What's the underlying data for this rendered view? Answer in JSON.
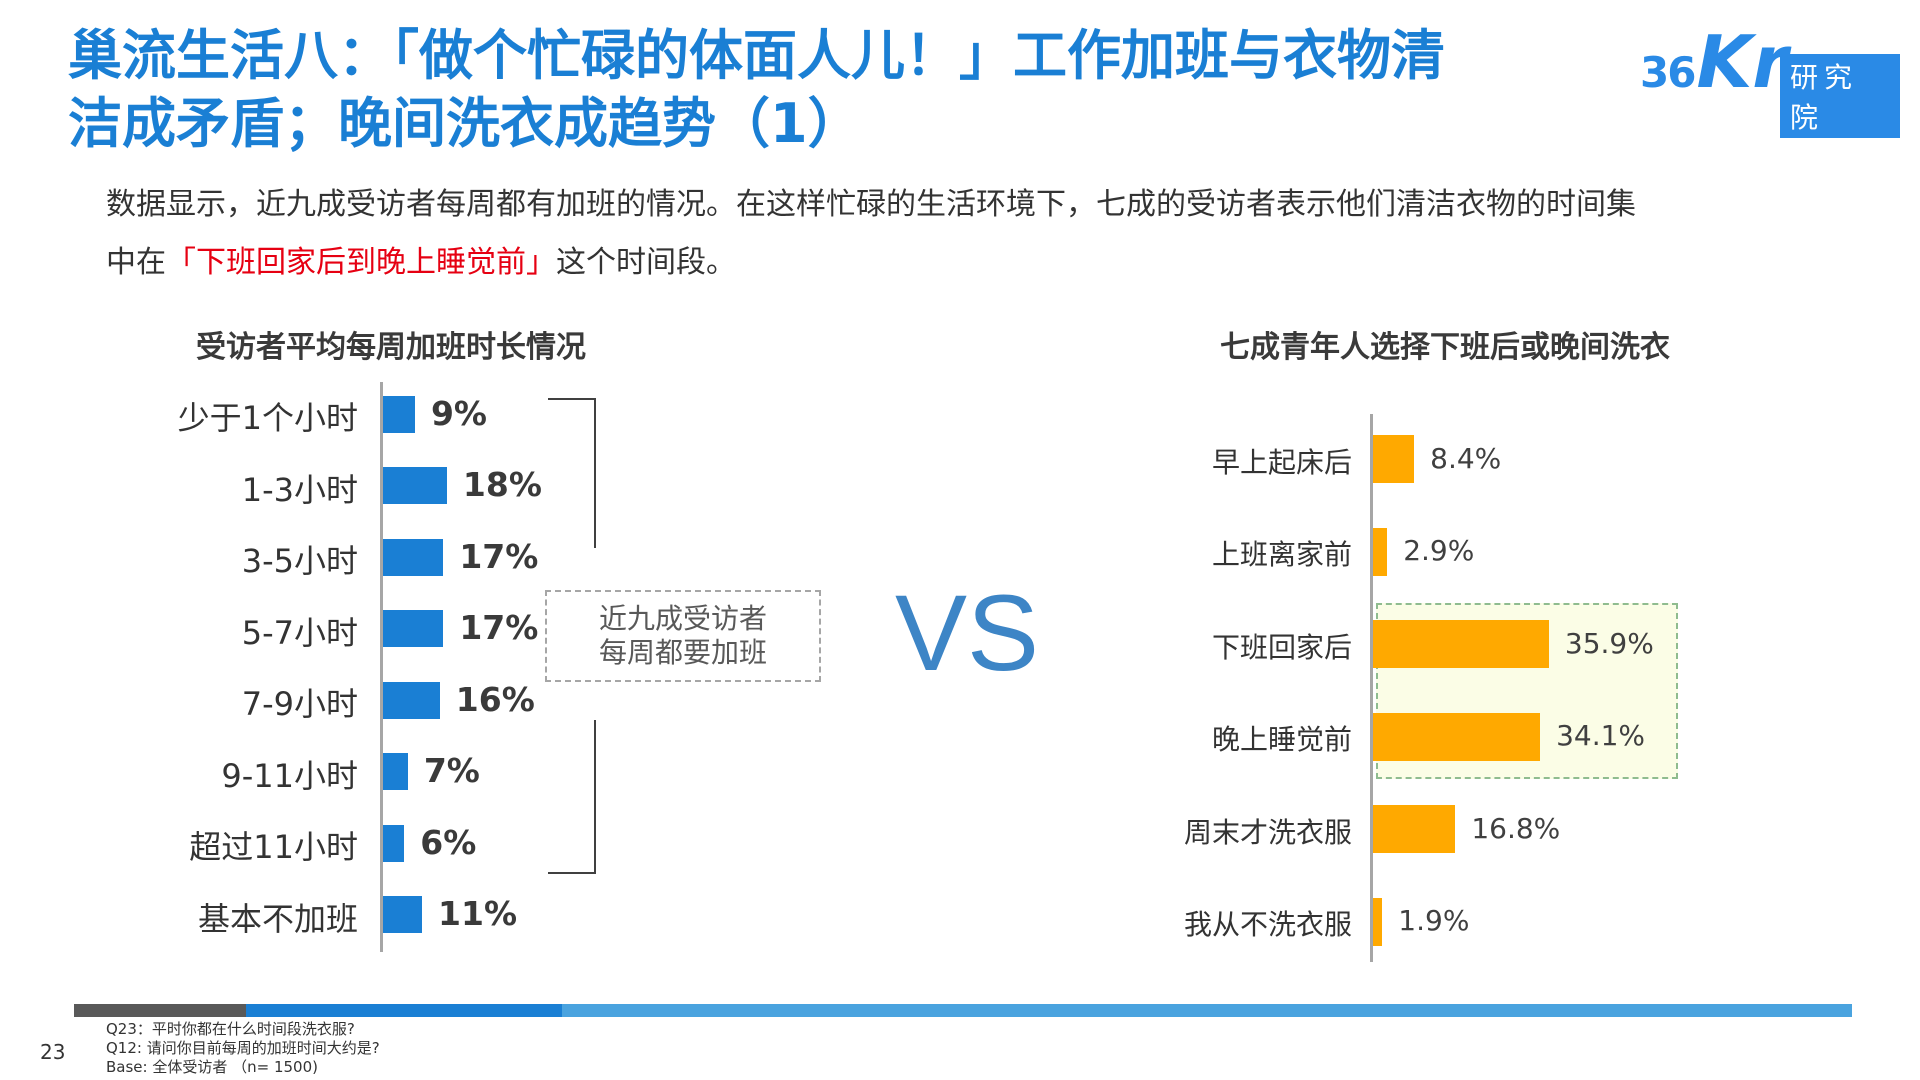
{
  "title": {
    "line1": "巢流生活八：「做个忙碌的体面人儿！」工作加班与衣物清",
    "line2": "洁成矛盾；晚间洗衣成趋势（1）"
  },
  "logo": {
    "number": "36",
    "brand": "Kr",
    "tag": "研究院"
  },
  "intro": {
    "line1": "数据显示，近九成受访者每周都有加班的情况。在这样忙碌的生活环境下，七成的受访者表示他们清洁衣物的时间集",
    "line2_pre": "中在",
    "line2_highlight": "「下班回家后到晚上睡觉前」",
    "line2_post": "这个时间段。",
    "highlight_color": "#e60012"
  },
  "callout": {
    "line1": "近九成受访者",
    "line2": "每周都要加班"
  },
  "vs_text": "VS",
  "chart_data": [
    {
      "type": "bar",
      "orientation": "horizontal",
      "title": "受访者平均每周加班时长情况",
      "categories": [
        "少于1个小时",
        "1-3小时",
        "3-5小时",
        "5-7小时",
        "7-9小时",
        "9-11小时",
        "超过11小时",
        "基本不加班"
      ],
      "values": [
        9,
        18,
        17,
        17,
        16,
        7,
        6,
        11
      ],
      "labels": [
        "9%",
        "18%",
        "17%",
        "17%",
        "16%",
        "7%",
        "6%",
        "11%"
      ],
      "unit": "%",
      "color": "#1a7fd4",
      "grid": false
    },
    {
      "type": "bar",
      "orientation": "horizontal",
      "title": "七成青年人选择下班后或晚间洗衣",
      "categories": [
        "早上起床后",
        "上班离家前",
        "下班回家后",
        "晚上睡觉前",
        "周末才洗衣服",
        "我从不洗衣服"
      ],
      "values": [
        8.4,
        2.9,
        35.9,
        34.1,
        16.8,
        1.9
      ],
      "labels": [
        "8.4%",
        "2.9%",
        "35.9%",
        "34.1%",
        "16.8%",
        "1.9%"
      ],
      "unit": "%",
      "color": "#ffa900",
      "highlight_color": "#fbfde6",
      "grid": false
    }
  ],
  "footer": {
    "page": "23",
    "notes": [
      "Q23：平时你都在什么时间段洗衣服?",
      "Q12: 请问你目前每周的加班时间大约是?",
      "Base: 全体受访者  （n= 1500)"
    ],
    "bar_colors": [
      "#595959",
      "#1a7fd4",
      "#4aa3df"
    ]
  }
}
